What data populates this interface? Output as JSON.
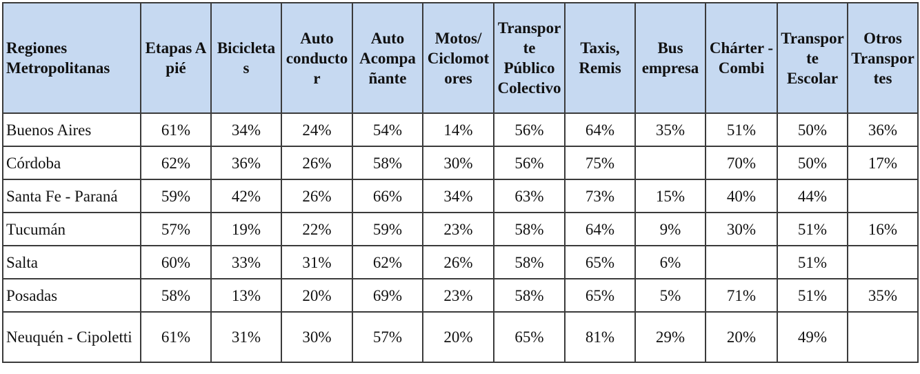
{
  "table": {
    "header": [
      "Regiones Metropolitanas",
      "Etapas A pié",
      "Bicicletas",
      "Auto conductor",
      "Auto Acompañante",
      "Motos/ Ciclomotores",
      "Transporte Público Colectivo",
      "Taxis, Remis",
      "Bus empresa",
      "Chárter - Combi",
      "Transporte Escolar",
      "Otros Transportes"
    ],
    "rows": [
      [
        "Buenos Aires",
        "61%",
        "34%",
        "24%",
        "54%",
        "14%",
        "56%",
        "64%",
        "35%",
        "51%",
        "50%",
        "36%"
      ],
      [
        "Córdoba",
        "62%",
        "36%",
        "26%",
        "58%",
        "30%",
        "56%",
        "75%",
        null,
        "70%",
        "50%",
        "17%"
      ],
      [
        "Santa Fe - Paraná",
        "59%",
        "42%",
        "26%",
        "66%",
        "34%",
        "63%",
        "73%",
        "15%",
        "40%",
        "44%",
        null
      ],
      [
        "Tucumán",
        "57%",
        "19%",
        "22%",
        "59%",
        "23%",
        "58%",
        "64%",
        "9%",
        "30%",
        "51%",
        "16%"
      ],
      [
        "Salta",
        "60%",
        "33%",
        "31%",
        "62%",
        "26%",
        "58%",
        "65%",
        "6%",
        null,
        "51%",
        null
      ],
      [
        "Posadas",
        "58%",
        "13%",
        "20%",
        "69%",
        "23%",
        "58%",
        "65%",
        "5%",
        "71%",
        "51%",
        "35%"
      ],
      [
        "Neuquén - Cipoletti",
        "61%",
        "31%",
        "30%",
        "57%",
        "20%",
        "65%",
        "81%",
        "29%",
        "20%",
        "49%",
        null
      ]
    ]
  }
}
